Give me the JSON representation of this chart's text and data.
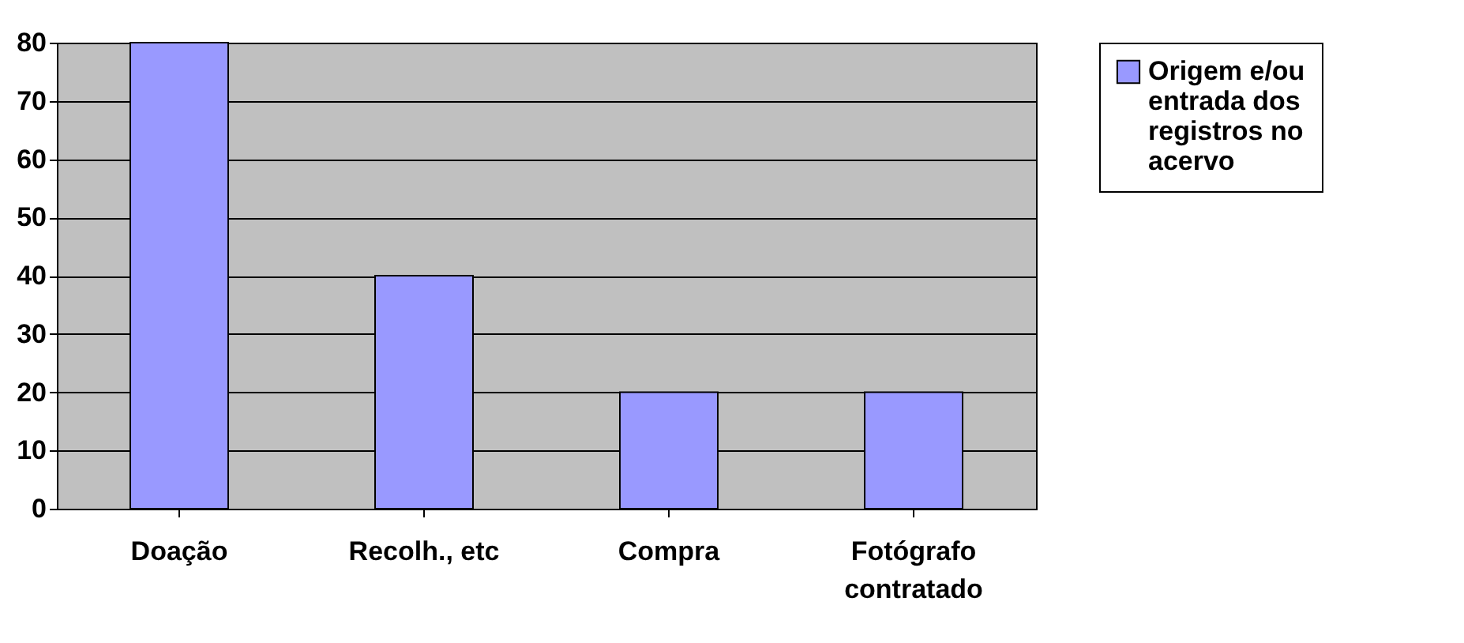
{
  "chart_data": {
    "type": "bar",
    "categories": [
      "Doação",
      "Recolh., etc",
      "Compra",
      "Fotógrafo contratado"
    ],
    "series": [
      {
        "name": "Origem e/ou entrada dos registros no acervo",
        "color": "#9999ff",
        "values": [
          80,
          40,
          20,
          20
        ]
      }
    ],
    "ylim": [
      0,
      80
    ],
    "yticks": [
      0,
      10,
      20,
      30,
      40,
      50,
      60,
      70,
      80
    ],
    "grid": "y",
    "legend": "right"
  }
}
